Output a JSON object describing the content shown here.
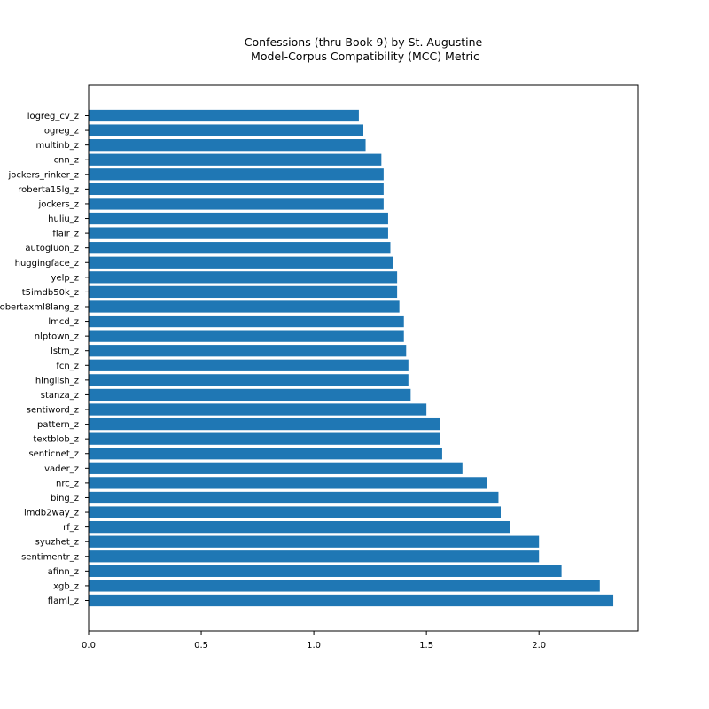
{
  "chart_data": {
    "type": "bar",
    "orientation": "horizontal",
    "title": "Confessions (thru Book 9) by St. Augustine",
    "subtitle": " Model-Corpus Compatibility (MCC) Metric",
    "xlabel": "",
    "ylabel": "",
    "xlim": [
      0,
      2.44
    ],
    "xticks": [
      0.0,
      0.5,
      1.0,
      1.5,
      2.0
    ],
    "xtick_labels": [
      "0.0",
      "0.5",
      "1.0",
      "1.5",
      "2.0"
    ],
    "bar_color": "#1f77b4",
    "grid": false,
    "categories": [
      "logreg_cv_z",
      "logreg_z",
      "multinb_z",
      "cnn_z",
      "jockers_rinker_z",
      "roberta15lg_z",
      "jockers_z",
      "huliu_z",
      "flair_z",
      "autogluon_z",
      "huggingface_z",
      "yelp_z",
      "t5imdb50k_z",
      "robertaxml8lang_z",
      "lmcd_z",
      "nlptown_z",
      "lstm_z",
      "fcn_z",
      "hinglish_z",
      "stanza_z",
      "sentiword_z",
      "pattern_z",
      "textblob_z",
      "senticnet_z",
      "vader_z",
      "nrc_z",
      "bing_z",
      "imdb2way_z",
      "rf_z",
      "syuzhet_z",
      "sentimentr_z",
      "afinn_z",
      "xgb_z",
      "flaml_z"
    ],
    "values": [
      1.2,
      1.22,
      1.23,
      1.3,
      1.31,
      1.31,
      1.31,
      1.33,
      1.33,
      1.34,
      1.35,
      1.37,
      1.37,
      1.38,
      1.4,
      1.4,
      1.41,
      1.42,
      1.42,
      1.43,
      1.5,
      1.56,
      1.56,
      1.57,
      1.66,
      1.77,
      1.82,
      1.83,
      1.87,
      2.0,
      2.0,
      2.1,
      2.27,
      2.33
    ]
  }
}
